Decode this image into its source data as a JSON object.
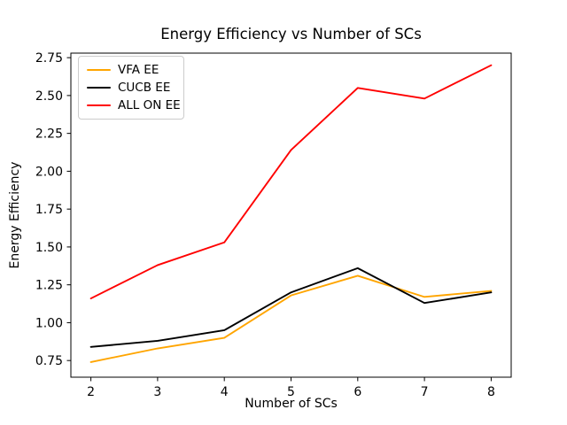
{
  "chart_data": {
    "type": "line",
    "title": "Energy Efficiency vs Number of SCs",
    "xlabel": "Number of SCs",
    "ylabel": "Energy Efficiency",
    "x": [
      2,
      3,
      4,
      5,
      6,
      7,
      8
    ],
    "series": [
      {
        "name": "VFA EE",
        "color": "#FFA500",
        "values": [
          0.74,
          0.83,
          0.9,
          1.18,
          1.31,
          1.17,
          1.21
        ]
      },
      {
        "name": "CUCB EE",
        "color": "#000000",
        "values": [
          0.84,
          0.88,
          0.95,
          1.2,
          1.36,
          1.13,
          1.2
        ]
      },
      {
        "name": "ALL ON EE",
        "color": "#FF0000",
        "values": [
          1.16,
          1.38,
          1.53,
          2.14,
          2.55,
          2.48,
          2.7
        ]
      }
    ],
    "xticks": [
      2,
      3,
      4,
      5,
      6,
      7,
      8
    ],
    "yticks": [
      0.75,
      1.0,
      1.25,
      1.5,
      1.75,
      2.0,
      2.25,
      2.5,
      2.75
    ],
    "xlim": [
      1.7,
      8.3
    ],
    "ylim": [
      0.64,
      2.78
    ],
    "grid": false,
    "legend_position": "upper left",
    "frame_color": "#000000"
  }
}
